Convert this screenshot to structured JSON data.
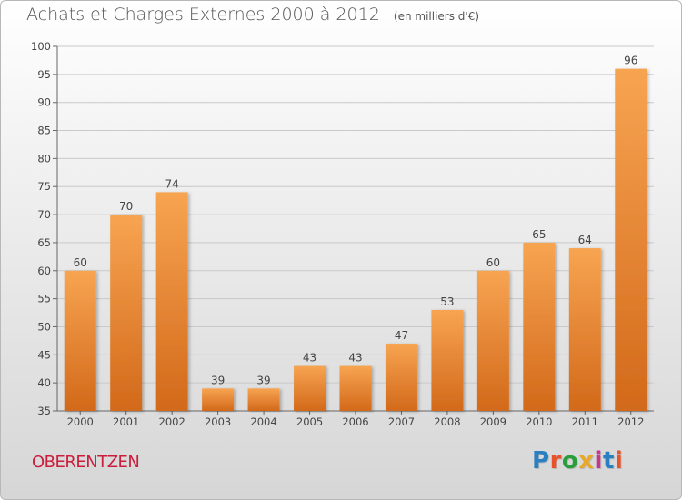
{
  "title": "Achats et Charges Externes 2000 à 2012",
  "subtitle": "(en milliers d'€)",
  "town": "OBERENTZEN",
  "logo": {
    "text": "Proxiti",
    "letter_colors": [
      "#2a7fc1",
      "#e8532b",
      "#2a9d3c",
      "#e8a92b",
      "#c7368d",
      "#2a7fc1",
      "#e8532b"
    ]
  },
  "chart_data": {
    "type": "bar",
    "categories": [
      "2000",
      "2001",
      "2002",
      "2003",
      "2004",
      "2005",
      "2006",
      "2007",
      "2008",
      "2009",
      "2010",
      "2011",
      "2012"
    ],
    "values": [
      60,
      70,
      74,
      39,
      39,
      43,
      43,
      47,
      53,
      60,
      65,
      64,
      96
    ],
    "data_labels": [
      "60",
      "70",
      "74",
      "39",
      "39",
      "43",
      "43",
      "47",
      "53",
      "60",
      "65",
      "64",
      "96"
    ],
    "ylim": [
      35,
      100
    ],
    "yticks": [
      35,
      40,
      45,
      50,
      55,
      60,
      65,
      70,
      75,
      80,
      85,
      90,
      95,
      100
    ],
    "ytick_labels": [
      "35",
      "40",
      "45",
      "50",
      "55",
      "60",
      "65",
      "70",
      "75",
      "80",
      "85",
      "90",
      "95",
      "100"
    ],
    "grid": true,
    "bar_color_top": "#f7a451",
    "bar_color_bottom": "#d2691a"
  }
}
